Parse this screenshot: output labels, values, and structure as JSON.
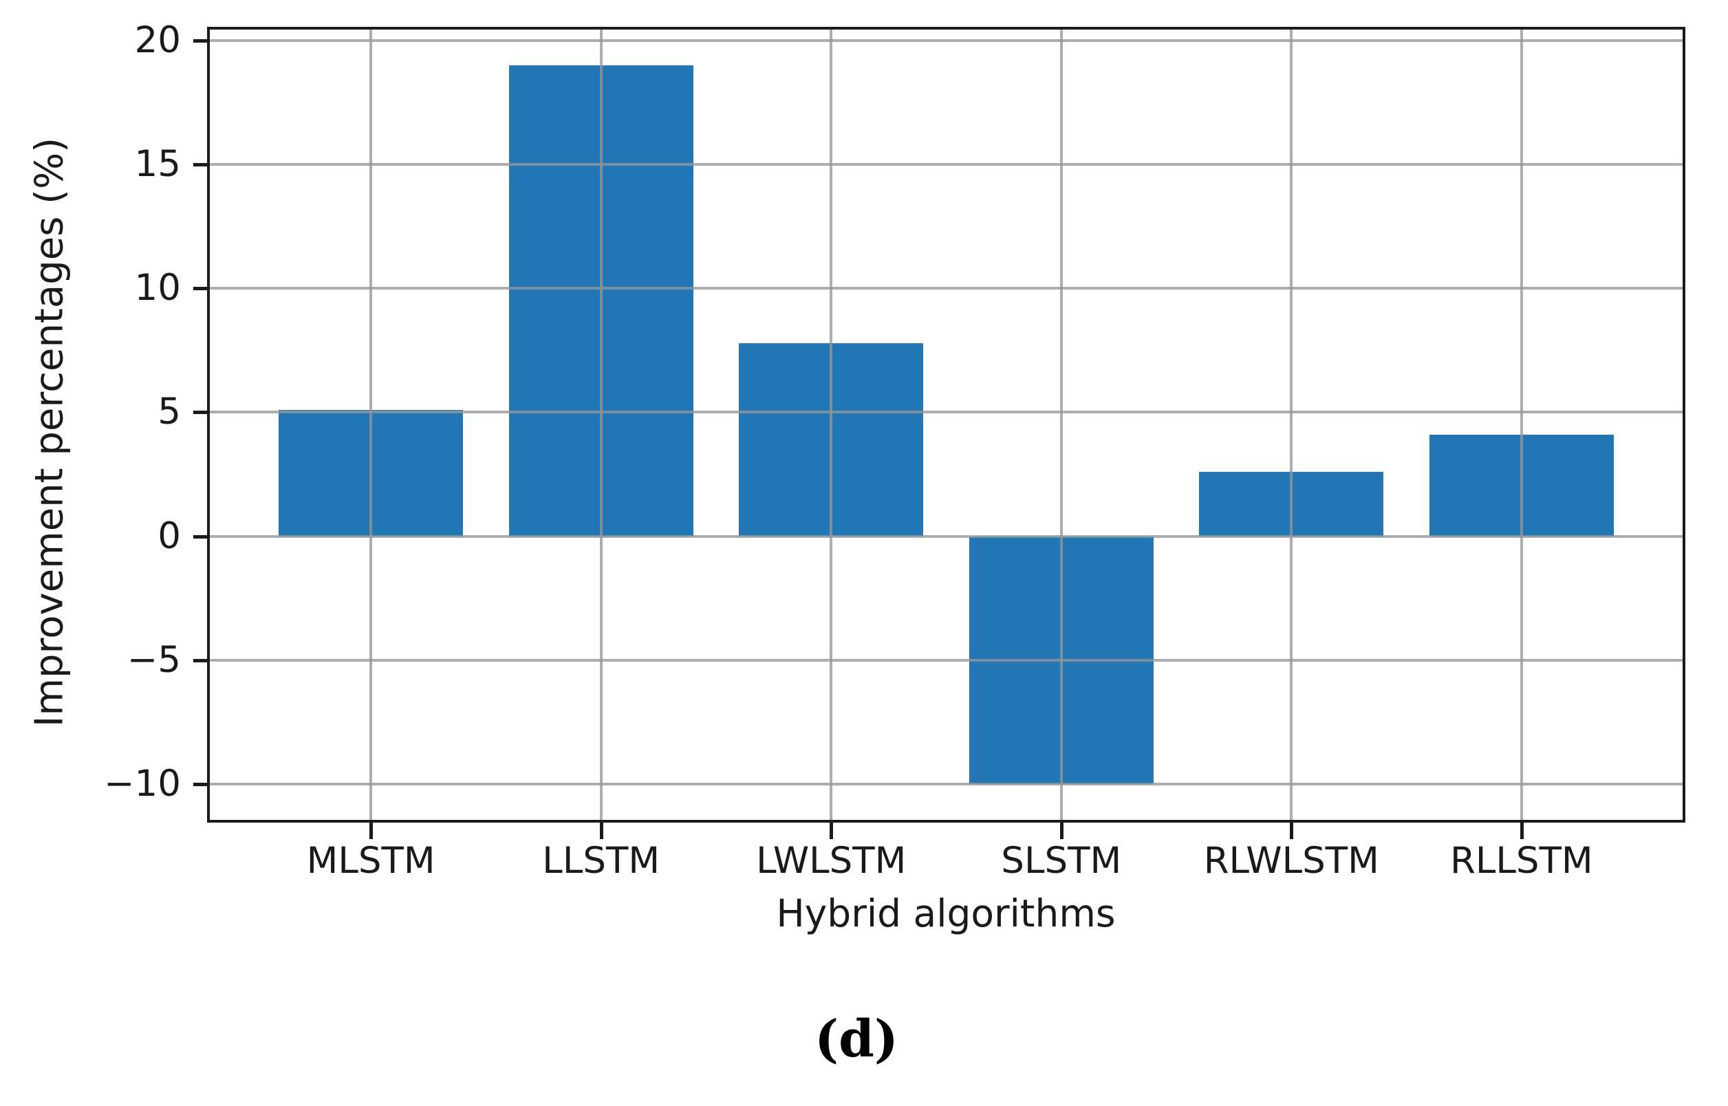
{
  "figure": {
    "caption": "(d)",
    "background": "#ffffff"
  },
  "chart_data": {
    "type": "bar",
    "title": "",
    "xlabel": "Hybrid algorithms",
    "ylabel": "Improvement percentages (%)",
    "categories": [
      "MLSTM",
      "LLSTM",
      "LWLSTM",
      "SLSTM",
      "RLWLSTM",
      "RLLSTM"
    ],
    "values": [
      5.1,
      19.0,
      7.8,
      -10.0,
      2.6,
      4.1
    ],
    "yticks": [
      20,
      15,
      10,
      5,
      0,
      -5,
      -10
    ],
    "ytick_labels": [
      "20",
      "15",
      "10",
      "5",
      "0",
      "−5",
      "−10"
    ],
    "ylim": [
      -11.45,
      20.45
    ],
    "xlim": [
      -0.7,
      5.7
    ],
    "bar_width_units": 0.8,
    "grid": true,
    "grid_above_bars": true,
    "legend_position": "none",
    "bar_color": "#2277b4",
    "grid_color": "rgba(150,150,150,0.78)",
    "spine_color": "#1b1b1b",
    "text_color": "#1a1a1a"
  }
}
